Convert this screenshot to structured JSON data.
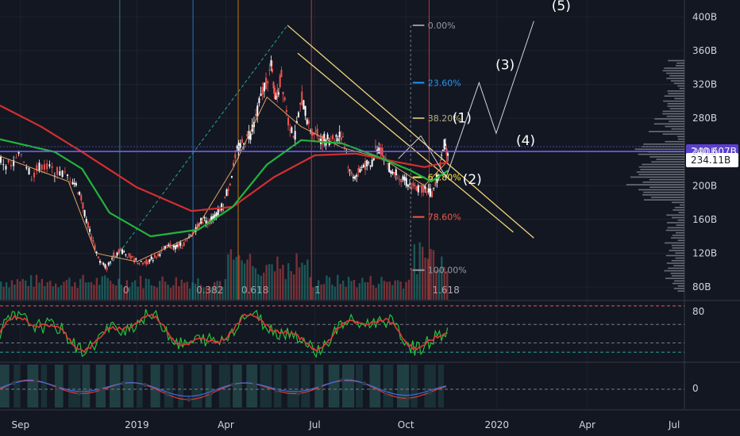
{
  "chart_data": {
    "type": "candlestick",
    "x_labels": [
      "Sep",
      "2019",
      "Apr",
      "Jul",
      "Oct",
      "2020",
      "Apr",
      "Jul"
    ],
    "y_ticks": [
      80,
      120,
      160,
      200,
      240,
      280,
      320,
      360,
      400
    ],
    "y_unit": "B",
    "y_tick_labels": [
      "80B",
      "120B",
      "160B",
      "200B",
      "240B",
      "280B",
      "320B",
      "360B",
      "400B"
    ],
    "ylim": [
      65,
      420
    ],
    "price_tags": [
      {
        "label": "240.607B",
        "value": 240.6,
        "color": "#5b3fcf"
      },
      {
        "label": "234.11B",
        "value": 234.1,
        "color": "#ffffff"
      }
    ],
    "fib_levels": [
      {
        "label": "0.00%",
        "value": 390,
        "color": "#9598a1"
      },
      {
        "label": "23.60%",
        "value": 322,
        "color": "#2196f3"
      },
      {
        "label": "38.20%",
        "value": 280,
        "color": "#b7b07a"
      },
      {
        "label": "61.80%",
        "value": 210,
        "color": "#ffeb3b"
      },
      {
        "label": "78.60%",
        "value": 163,
        "color": "#f05a45"
      },
      {
        "label": "100.00%",
        "value": 100,
        "color": "#9598a1"
      }
    ],
    "fib_time_labels": [
      "0",
      "0.382",
      "0.618",
      "1",
      "1.618"
    ],
    "wave_labels": [
      "(1)",
      "(2)",
      "(3)",
      "(4)",
      "(5)"
    ],
    "wave_path": [
      [
        0.582,
        232
      ],
      [
        0.615,
        259
      ],
      [
        0.652,
        210
      ],
      [
        0.7,
        322
      ],
      [
        0.725,
        262
      ],
      [
        0.78,
        395
      ]
    ],
    "candles": [
      [
        0.0,
        230
      ],
      [
        0.015,
        222
      ],
      [
        0.03,
        238
      ],
      [
        0.045,
        212
      ],
      [
        0.06,
        225
      ],
      [
        0.075,
        218
      ],
      [
        0.09,
        214
      ],
      [
        0.105,
        208
      ],
      [
        0.115,
        192
      ],
      [
        0.125,
        160
      ],
      [
        0.135,
        132
      ],
      [
        0.145,
        110
      ],
      [
        0.155,
        103
      ],
      [
        0.165,
        118
      ],
      [
        0.175,
        124
      ],
      [
        0.185,
        118
      ],
      [
        0.195,
        112
      ],
      [
        0.205,
        108
      ],
      [
        0.215,
        110
      ],
      [
        0.225,
        116
      ],
      [
        0.235,
        122
      ],
      [
        0.245,
        128
      ],
      [
        0.255,
        128
      ],
      [
        0.265,
        130
      ],
      [
        0.275,
        136
      ],
      [
        0.285,
        150
      ],
      [
        0.295,
        160
      ],
      [
        0.305,
        158
      ],
      [
        0.315,
        165
      ],
      [
        0.325,
        178
      ],
      [
        0.335,
        205
      ],
      [
        0.345,
        240
      ],
      [
        0.355,
        255
      ],
      [
        0.365,
        262
      ],
      [
        0.375,
        290
      ],
      [
        0.385,
        318
      ],
      [
        0.395,
        340
      ],
      [
        0.402,
        300
      ],
      [
        0.41,
        330
      ],
      [
        0.42,
        278
      ],
      [
        0.43,
        258
      ],
      [
        0.44,
        305
      ],
      [
        0.45,
        270
      ],
      [
        0.46,
        262
      ],
      [
        0.47,
        255
      ],
      [
        0.48,
        255
      ],
      [
        0.49,
        258
      ],
      [
        0.5,
        260
      ],
      [
        0.51,
        215
      ],
      [
        0.52,
        212
      ],
      [
        0.53,
        225
      ],
      [
        0.54,
        222
      ],
      [
        0.55,
        248
      ],
      [
        0.56,
        236
      ],
      [
        0.57,
        218
      ],
      [
        0.58,
        215
      ],
      [
        0.59,
        205
      ],
      [
        0.6,
        200
      ],
      [
        0.61,
        196
      ],
      [
        0.62,
        198
      ],
      [
        0.63,
        190
      ],
      [
        0.64,
        215
      ],
      [
        0.648,
        250
      ],
      [
        0.655,
        236
      ]
    ],
    "ma_fast": [
      [
        0.0,
        235
      ],
      [
        0.1,
        205
      ],
      [
        0.14,
        120
      ],
      [
        0.2,
        110
      ],
      [
        0.28,
        140
      ],
      [
        0.34,
        220
      ],
      [
        0.39,
        305
      ],
      [
        0.44,
        270
      ],
      [
        0.5,
        245
      ],
      [
        0.56,
        232
      ],
      [
        0.62,
        200
      ],
      [
        0.655,
        230
      ]
    ],
    "ma_green": [
      [
        0.0,
        255
      ],
      [
        0.08,
        240
      ],
      [
        0.12,
        220
      ],
      [
        0.16,
        168
      ],
      [
        0.22,
        140
      ],
      [
        0.29,
        148
      ],
      [
        0.34,
        175
      ],
      [
        0.39,
        225
      ],
      [
        0.44,
        254
      ],
      [
        0.5,
        250
      ],
      [
        0.55,
        235
      ],
      [
        0.6,
        218
      ],
      [
        0.63,
        205
      ],
      [
        0.655,
        218
      ]
    ],
    "ma_red": [
      [
        0.0,
        295
      ],
      [
        0.06,
        270
      ],
      [
        0.12,
        240
      ],
      [
        0.2,
        198
      ],
      [
        0.28,
        170
      ],
      [
        0.34,
        175
      ],
      [
        0.4,
        210
      ],
      [
        0.46,
        236
      ],
      [
        0.52,
        238
      ],
      [
        0.58,
        228
      ],
      [
        0.62,
        222
      ],
      [
        0.655,
        228
      ]
    ],
    "rsi_levels": [
      80,
      60,
      40,
      30
    ],
    "rsi_tick_label": "80",
    "osc_tick_label": "0"
  }
}
